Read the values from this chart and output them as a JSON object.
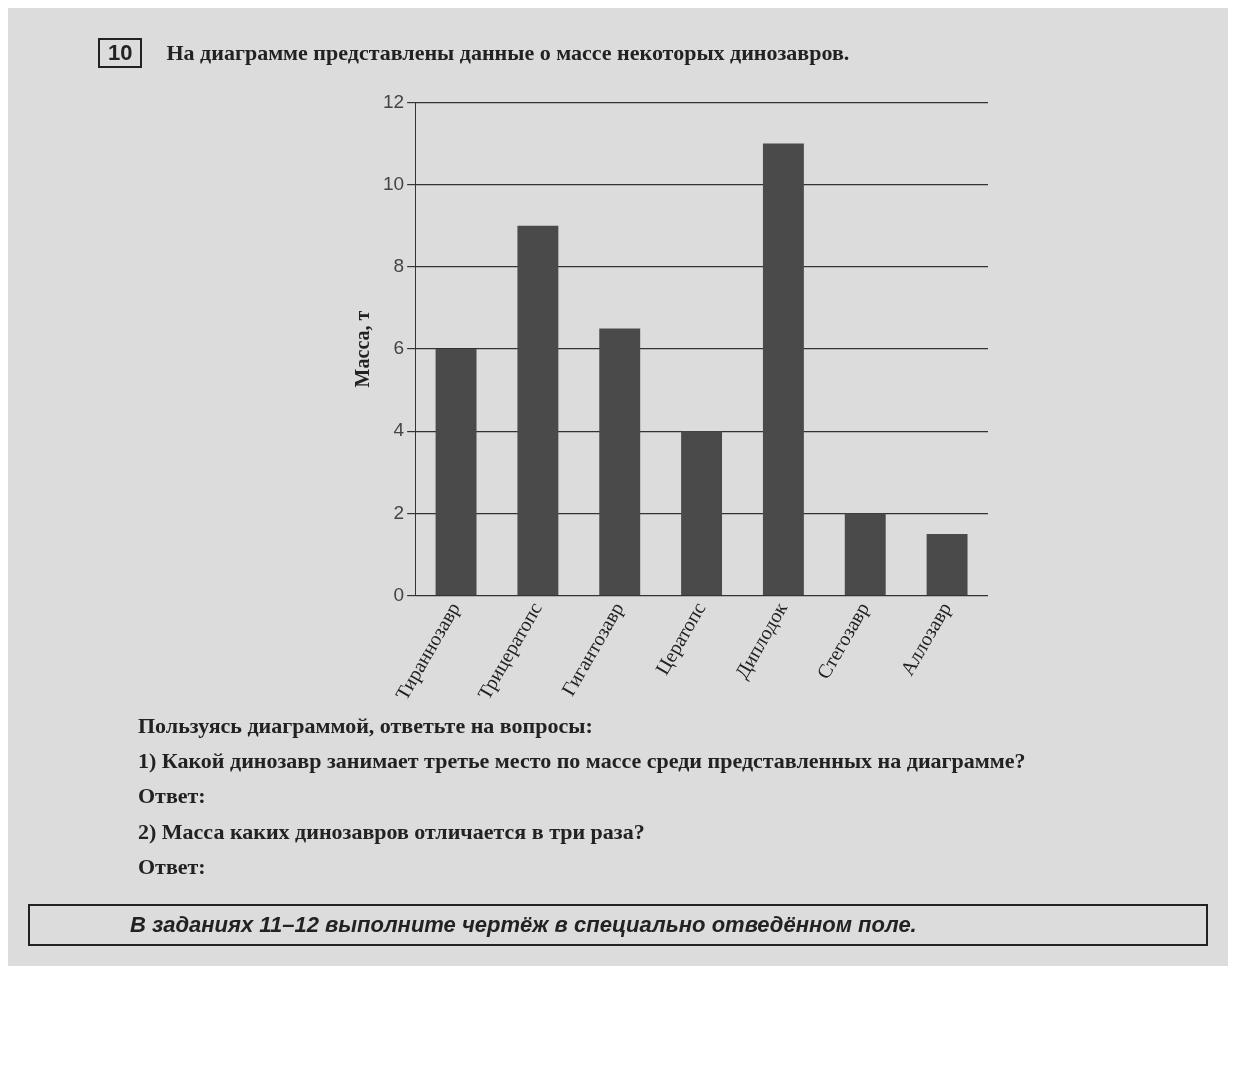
{
  "chart_data": {
    "type": "bar",
    "title": "На диаграмме представлены данные о массе некоторых динозавров.",
    "ylabel": "Масса, т",
    "categories": [
      "Тираннозавр",
      "Трицератопс",
      "Гигантозавр",
      "Цератопс",
      "Диплодок",
      "Стегозавр",
      "Аллозавр"
    ],
    "values": [
      6,
      9,
      6.5,
      4,
      11,
      2,
      1.5
    ],
    "color": "#4a4a4a",
    "ylim": [
      0,
      12
    ],
    "yticks": [
      0,
      2,
      4,
      6,
      8,
      10,
      12
    ],
    "grid": "y",
    "legend": false,
    "annotations": [
      "10",
      "Пользуясь диаграммой, ответьте на вопросы:",
      "1) Какой динозавр занимает третье место по массе среди представленных на диаграмме?",
      "Ответ:",
      "2) Масса каких динозавров отличается в три раза?",
      "Ответ:",
      "В заданиях 11–12 выполните чертёж в специально отведённом поле."
    ]
  }
}
